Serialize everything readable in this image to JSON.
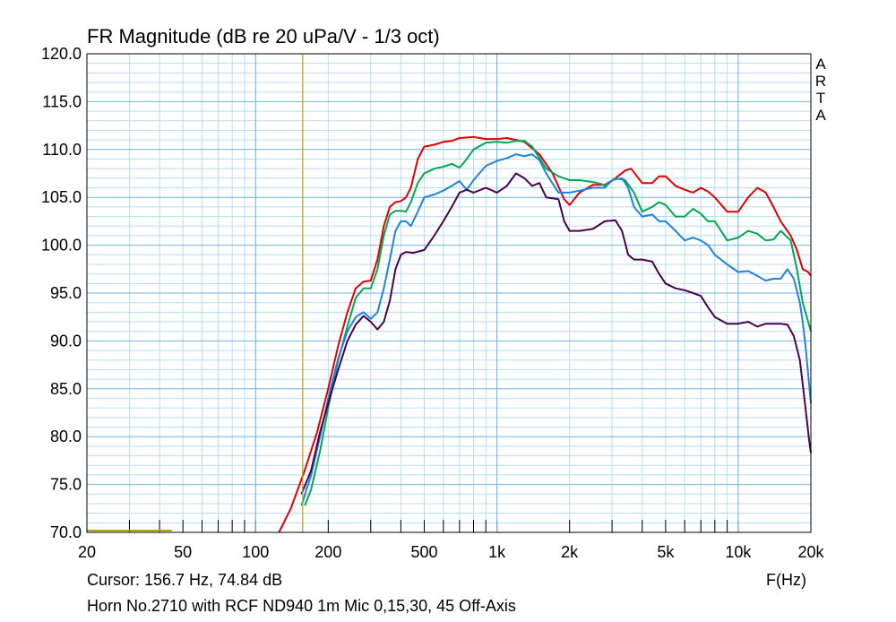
{
  "title": "FR Magnitude (dB re 20 uPa/V - 1/3 oct)",
  "brand_letters": [
    "A",
    "R",
    "T",
    "A"
  ],
  "cursor_readout": "Cursor: 156.7 Hz, 74.84 dB",
  "x_axis_unit": "F(Hz)",
  "caption": "Horn No.2710 with RCF ND940 1m Mic 0,15,30, 45 Off-Axis",
  "colors": {
    "grid_major": "#6fb4e6",
    "grid_minor": "#b9dcf3",
    "cursor_line": "#b8a200",
    "red": "#e00000",
    "green": "#00a84f",
    "blue": "#1e82e0",
    "purple": "#4b0050"
  },
  "chart_data": {
    "type": "line",
    "x_scale": "log",
    "xlim": [
      20,
      20000
    ],
    "ylim": [
      70,
      120
    ],
    "x_ticks": [
      {
        "value": 20,
        "label": "20"
      },
      {
        "value": 50,
        "label": "50"
      },
      {
        "value": 100,
        "label": "100"
      },
      {
        "value": 200,
        "label": "200"
      },
      {
        "value": 500,
        "label": "500"
      },
      {
        "value": 1000,
        "label": "1k"
      },
      {
        "value": 2000,
        "label": "2k"
      },
      {
        "value": 5000,
        "label": "5k"
      },
      {
        "value": 10000,
        "label": "10k"
      },
      {
        "value": 20000,
        "label": "20k"
      }
    ],
    "y_ticks": [
      {
        "value": 120,
        "label": "120.0"
      },
      {
        "value": 115,
        "label": "115.0"
      },
      {
        "value": 110,
        "label": "110.0"
      },
      {
        "value": 105,
        "label": "105.0"
      },
      {
        "value": 100,
        "label": "100.0"
      },
      {
        "value": 95,
        "label": "95.0"
      },
      {
        "value": 90,
        "label": "90.0"
      },
      {
        "value": 85,
        "label": "85.0"
      },
      {
        "value": 80,
        "label": "80.0"
      },
      {
        "value": 75,
        "label": "75.0"
      },
      {
        "value": 70,
        "label": "70.0"
      }
    ],
    "cursor": {
      "x": 156.7,
      "y": 74.84
    },
    "grid": true,
    "series": [
      {
        "color_key": "red",
        "points": [
          [
            125,
            70
          ],
          [
            140,
            72.5
          ],
          [
            160,
            76.5
          ],
          [
            180,
            80.5
          ],
          [
            200,
            85
          ],
          [
            220,
            89.5
          ],
          [
            240,
            93
          ],
          [
            260,
            95.5
          ],
          [
            280,
            96.2
          ],
          [
            300,
            96.3
          ],
          [
            320,
            98.5
          ],
          [
            340,
            102
          ],
          [
            360,
            104
          ],
          [
            380,
            104.5
          ],
          [
            400,
            104.6
          ],
          [
            420,
            105
          ],
          [
            440,
            106
          ],
          [
            470,
            109
          ],
          [
            500,
            110.3
          ],
          [
            550,
            110.5
          ],
          [
            600,
            110.8
          ],
          [
            650,
            110.9
          ],
          [
            700,
            111.2
          ],
          [
            800,
            111.3
          ],
          [
            900,
            111.1
          ],
          [
            1000,
            111.1
          ],
          [
            1100,
            111.2
          ],
          [
            1200,
            111.0
          ],
          [
            1300,
            110.8
          ],
          [
            1500,
            109.5
          ],
          [
            1700,
            107.5
          ],
          [
            1900,
            104.8
          ],
          [
            2000,
            104.2
          ],
          [
            2200,
            105.5
          ],
          [
            2500,
            106.3
          ],
          [
            2800,
            106.3
          ],
          [
            3100,
            107.0
          ],
          [
            3400,
            107.8
          ],
          [
            3600,
            108
          ],
          [
            4000,
            106.5
          ],
          [
            4400,
            106.5
          ],
          [
            4700,
            107.2
          ],
          [
            5000,
            107.2
          ],
          [
            5500,
            106.2
          ],
          [
            6000,
            105.8
          ],
          [
            6500,
            105.5
          ],
          [
            7000,
            106
          ],
          [
            7500,
            105.6
          ],
          [
            8000,
            105
          ],
          [
            9000,
            103.5
          ],
          [
            10000,
            103.5
          ],
          [
            11000,
            105
          ],
          [
            12000,
            106
          ],
          [
            13000,
            105.5
          ],
          [
            14000,
            104
          ],
          [
            15000,
            102.5
          ],
          [
            16500,
            101
          ],
          [
            17500,
            99.5
          ],
          [
            18500,
            97.5
          ],
          [
            19500,
            97.2
          ],
          [
            20000,
            96.8
          ]
        ]
      },
      {
        "color_key": "green",
        "points": [
          [
            160,
            72.8
          ],
          [
            170,
            74.5
          ],
          [
            185,
            78.5
          ],
          [
            200,
            83
          ],
          [
            220,
            88
          ],
          [
            240,
            91.5
          ],
          [
            260,
            94.5
          ],
          [
            280,
            95.5
          ],
          [
            300,
            95.5
          ],
          [
            320,
            97.5
          ],
          [
            340,
            101
          ],
          [
            360,
            103.2
          ],
          [
            380,
            103.6
          ],
          [
            400,
            103.6
          ],
          [
            420,
            103.5
          ],
          [
            440,
            104.5
          ],
          [
            470,
            106.5
          ],
          [
            500,
            107.5
          ],
          [
            550,
            108
          ],
          [
            600,
            108.2
          ],
          [
            650,
            108.5
          ],
          [
            700,
            108.1
          ],
          [
            750,
            109
          ],
          [
            800,
            110
          ],
          [
            900,
            110.7
          ],
          [
            1000,
            110.8
          ],
          [
            1100,
            110.7
          ],
          [
            1200,
            110.9
          ],
          [
            1300,
            110.9
          ],
          [
            1400,
            110.3
          ],
          [
            1600,
            108
          ],
          [
            1800,
            107.2
          ],
          [
            2000,
            106.8
          ],
          [
            2200,
            106.8
          ],
          [
            2500,
            106.6
          ],
          [
            2700,
            106.4
          ],
          [
            2800,
            106.2
          ],
          [
            3100,
            107
          ],
          [
            3400,
            106.8
          ],
          [
            3700,
            105.5
          ],
          [
            4000,
            103.5
          ],
          [
            4400,
            104
          ],
          [
            4700,
            104.5
          ],
          [
            5000,
            104.2
          ],
          [
            5500,
            103
          ],
          [
            6000,
            103
          ],
          [
            6500,
            103.8
          ],
          [
            7000,
            103.3
          ],
          [
            7500,
            102.5
          ],
          [
            8000,
            102.5
          ],
          [
            9000,
            100.5
          ],
          [
            10000,
            100.8
          ],
          [
            11000,
            101.5
          ],
          [
            12000,
            101.2
          ],
          [
            13000,
            100.5
          ],
          [
            14000,
            100.6
          ],
          [
            15000,
            101.5
          ],
          [
            16500,
            100.5
          ],
          [
            17500,
            97.5
          ],
          [
            18500,
            94
          ],
          [
            19500,
            92
          ],
          [
            20000,
            91
          ]
        ]
      },
      {
        "color_key": "blue",
        "points": [
          [
            155,
            72.8
          ],
          [
            170,
            76
          ],
          [
            185,
            80
          ],
          [
            200,
            84
          ],
          [
            220,
            88.2
          ],
          [
            240,
            91
          ],
          [
            260,
            92.5
          ],
          [
            280,
            93
          ],
          [
            300,
            92.3
          ],
          [
            320,
            93
          ],
          [
            340,
            95.5
          ],
          [
            360,
            98.5
          ],
          [
            380,
            101.5
          ],
          [
            400,
            102.5
          ],
          [
            420,
            102.5
          ],
          [
            440,
            102
          ],
          [
            470,
            103.5
          ],
          [
            500,
            105
          ],
          [
            550,
            105.3
          ],
          [
            600,
            105.7
          ],
          [
            650,
            106.2
          ],
          [
            700,
            106.7
          ],
          [
            750,
            105.8
          ],
          [
            800,
            106.8
          ],
          [
            900,
            108.3
          ],
          [
            1000,
            108.8
          ],
          [
            1100,
            109.1
          ],
          [
            1200,
            109.5
          ],
          [
            1300,
            109.3
          ],
          [
            1400,
            109.5
          ],
          [
            1500,
            108.9
          ],
          [
            1600,
            107.5
          ],
          [
            1800,
            105.5
          ],
          [
            2000,
            105.5
          ],
          [
            2200,
            105.7
          ],
          [
            2500,
            106
          ],
          [
            2800,
            106
          ],
          [
            3000,
            106.8
          ],
          [
            3300,
            107
          ],
          [
            3500,
            106
          ],
          [
            3700,
            104
          ],
          [
            4000,
            103
          ],
          [
            4400,
            103.2
          ],
          [
            4700,
            102.5
          ],
          [
            5000,
            102.5
          ],
          [
            5500,
            101.5
          ],
          [
            6000,
            100.5
          ],
          [
            6500,
            100.8
          ],
          [
            7000,
            100.5
          ],
          [
            7500,
            100
          ],
          [
            8000,
            99
          ],
          [
            9000,
            98
          ],
          [
            10000,
            97.2
          ],
          [
            11000,
            97.3
          ],
          [
            12000,
            96.8
          ],
          [
            13000,
            96.3
          ],
          [
            14000,
            96.5
          ],
          [
            15000,
            96.5
          ],
          [
            16000,
            97.5
          ],
          [
            17000,
            96.5
          ],
          [
            18000,
            94
          ],
          [
            18500,
            92
          ],
          [
            19000,
            89.5
          ],
          [
            19500,
            86.5
          ],
          [
            20000,
            83.5
          ]
        ]
      },
      {
        "color_key": "purple",
        "points": [
          [
            155,
            74
          ],
          [
            170,
            76.5
          ],
          [
            185,
            80.5
          ],
          [
            200,
            83.5
          ],
          [
            220,
            87
          ],
          [
            240,
            90
          ],
          [
            260,
            91.7
          ],
          [
            280,
            92.6
          ],
          [
            300,
            92
          ],
          [
            320,
            91.2
          ],
          [
            340,
            92
          ],
          [
            360,
            94.2
          ],
          [
            380,
            97.5
          ],
          [
            400,
            99
          ],
          [
            420,
            99.3
          ],
          [
            450,
            99.2
          ],
          [
            500,
            99.5
          ],
          [
            550,
            101
          ],
          [
            600,
            102.5
          ],
          [
            650,
            104
          ],
          [
            700,
            105.5
          ],
          [
            750,
            105.8
          ],
          [
            800,
            105.5
          ],
          [
            900,
            106
          ],
          [
            1000,
            105.5
          ],
          [
            1100,
            106.2
          ],
          [
            1200,
            107.5
          ],
          [
            1300,
            107
          ],
          [
            1400,
            106.2
          ],
          [
            1500,
            106.5
          ],
          [
            1600,
            105
          ],
          [
            1800,
            104.8
          ],
          [
            1900,
            102.5
          ],
          [
            2000,
            101.5
          ],
          [
            2200,
            101.5
          ],
          [
            2500,
            101.7
          ],
          [
            2800,
            102.5
          ],
          [
            3100,
            102.6
          ],
          [
            3300,
            101.5
          ],
          [
            3500,
            99
          ],
          [
            3700,
            98.5
          ],
          [
            4000,
            98.5
          ],
          [
            4400,
            98.3
          ],
          [
            4700,
            97
          ],
          [
            5000,
            96
          ],
          [
            5500,
            95.5
          ],
          [
            6000,
            95.3
          ],
          [
            6500,
            95
          ],
          [
            7000,
            94.7
          ],
          [
            7500,
            93.5
          ],
          [
            8000,
            92.5
          ],
          [
            9000,
            91.8
          ],
          [
            10000,
            91.8
          ],
          [
            11000,
            92
          ],
          [
            12000,
            91.5
          ],
          [
            13000,
            91.8
          ],
          [
            14000,
            91.8
          ],
          [
            15000,
            91.8
          ],
          [
            16000,
            91.7
          ],
          [
            17000,
            90.5
          ],
          [
            18000,
            88
          ],
          [
            19000,
            83
          ],
          [
            19700,
            79.5
          ],
          [
            20000,
            78.3
          ]
        ]
      }
    ]
  }
}
